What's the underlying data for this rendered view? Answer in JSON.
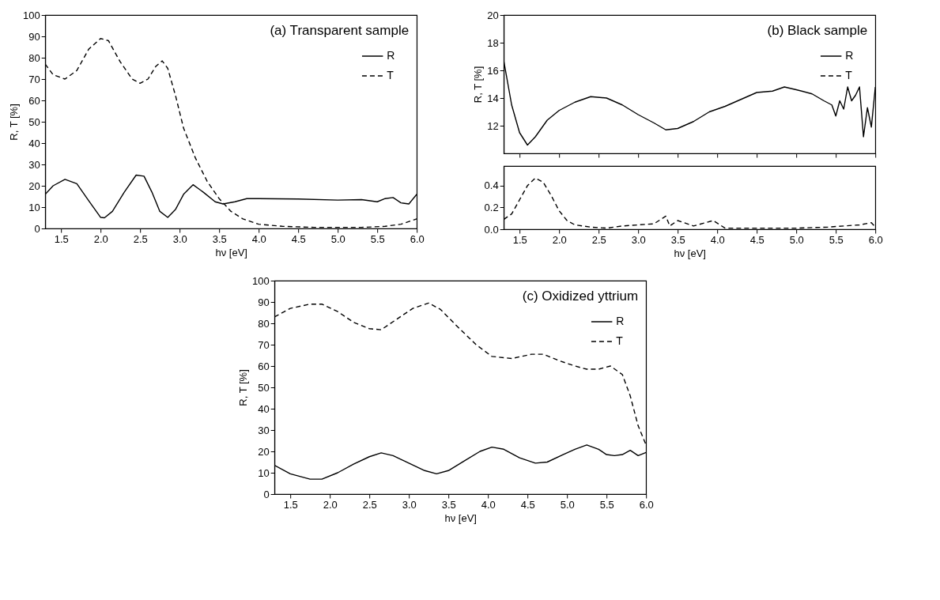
{
  "chart_data": [
    {
      "type": "line",
      "title": "(a) Transparent sample",
      "xlabel": "hν [eV]",
      "ylabel": "R, T [%]",
      "xlim": [
        1.3,
        6.0
      ],
      "xticks": [
        1.5,
        {
          "value": 2,
          "label": "2.0"
        },
        2.5,
        {
          "value": 3,
          "label": "3.0"
        },
        3.5,
        {
          "value": 4,
          "label": "4.0"
        },
        4.5,
        {
          "value": 5,
          "label": "5.0"
        },
        5.5,
        {
          "value": 6,
          "label": "6.0"
        }
      ],
      "ylim": [
        0,
        100
      ],
      "yticks": [
        0,
        10,
        20,
        30,
        40,
        50,
        60,
        70,
        80,
        90,
        100
      ],
      "grid": false,
      "legend": "top right",
      "series": [
        {
          "name": "R",
          "color": "#000000",
          "line_style": "solid",
          "x": [
            1.3,
            1.4,
            1.55,
            1.7,
            1.85,
            2.0,
            2.05,
            2.15,
            2.3,
            2.45,
            2.55,
            2.65,
            2.75,
            2.85,
            2.95,
            3.05,
            3.17,
            3.3,
            3.45,
            3.55,
            3.7,
            3.85,
            4.0,
            4.5,
            5.0,
            5.3,
            5.5,
            5.6,
            5.7,
            5.8,
            5.9,
            6.0
          ],
          "values": [
            16,
            20,
            23,
            21,
            13,
            5.2,
            5,
            8,
            17,
            25,
            24.5,
            17,
            8,
            5.2,
            9,
            16,
            20.5,
            17,
            12.5,
            11.5,
            12.5,
            14,
            14,
            13.8,
            13.3,
            13.5,
            12.5,
            14,
            14.5,
            12,
            11.5,
            16
          ]
        },
        {
          "name": "T",
          "color": "#000000",
          "line_style": "dashed",
          "x": [
            1.3,
            1.4,
            1.55,
            1.7,
            1.85,
            2.0,
            2.1,
            2.25,
            2.4,
            2.5,
            2.6,
            2.7,
            2.78,
            2.85,
            2.95,
            3.05,
            3.2,
            3.35,
            3.5,
            3.65,
            3.8,
            4.0,
            4.3,
            4.7,
            5.3,
            5.6,
            5.8,
            6.0
          ],
          "values": [
            77,
            72,
            70,
            74,
            84,
            89,
            88,
            78,
            70,
            68,
            70,
            76,
            78.5,
            75,
            62,
            47,
            33,
            22,
            14,
            8,
            4.5,
            2,
            1,
            0.5,
            0.5,
            1,
            2,
            4.5
          ]
        }
      ]
    },
    {
      "type": "line",
      "title": "(b) Black sample",
      "ylabel": "R, T [%]",
      "xlim": [
        1.3,
        6.0
      ],
      "xticks": [
        {
          "value": 1.5,
          "label": null
        },
        {
          "value": 2,
          "label": null
        },
        {
          "value": 2.5,
          "label": null
        },
        {
          "value": 3,
          "label": null
        },
        {
          "value": 3.5,
          "label": null
        },
        {
          "value": 4,
          "label": null
        },
        {
          "value": 4.5,
          "label": null
        },
        {
          "value": 5,
          "label": null
        },
        {
          "value": 5.5,
          "label": null
        },
        {
          "value": 6,
          "label": null
        }
      ],
      "ylim": [
        10,
        20
      ],
      "yticks": [
        12,
        14,
        16,
        18,
        20
      ],
      "tick_labels": "y",
      "grid": false,
      "legend": "top right",
      "series": [
        {
          "name": "R",
          "color": "#000000",
          "line_style": "solid",
          "x": [
            1.3,
            1.4,
            1.5,
            1.6,
            1.7,
            1.85,
            2.0,
            2.2,
            2.4,
            2.6,
            2.8,
            3.0,
            3.2,
            3.35,
            3.5,
            3.7,
            3.9,
            4.1,
            4.3,
            4.5,
            4.7,
            4.85,
            5.0,
            5.2,
            5.35,
            5.45,
            5.5,
            5.55,
            5.6,
            5.65,
            5.7,
            5.75,
            5.8,
            5.85,
            5.9,
            5.95,
            6.0
          ],
          "values": [
            16.7,
            13.5,
            11.5,
            10.6,
            11.2,
            12.4,
            13.1,
            13.7,
            14.1,
            14.0,
            13.5,
            12.8,
            12.2,
            11.7,
            11.8,
            12.3,
            13.0,
            13.4,
            13.9,
            14.4,
            14.5,
            14.8,
            14.6,
            14.3,
            13.8,
            13.5,
            12.7,
            13.8,
            13.2,
            14.8,
            13.8,
            14.2,
            14.8,
            11.2,
            13.3,
            11.9,
            14.8
          ]
        },
        {
          "name": "T",
          "color": "#000000",
          "line_style": "dashed"
        }
      ]
    },
    {
      "type": "line",
      "xlabel": "hν [eV]",
      "xlim": [
        1.3,
        6.0
      ],
      "xticks": [
        1.5,
        {
          "value": 2,
          "label": "2.0"
        },
        2.5,
        {
          "value": 3,
          "label": "3.0"
        },
        3.5,
        {
          "value": 4,
          "label": "4.0"
        },
        4.5,
        {
          "value": 5,
          "label": "5.0"
        },
        5.5,
        {
          "value": 6,
          "label": "6.0"
        }
      ],
      "ylim": [
        0,
        0.58
      ],
      "yticks": [
        {
          "value": 0,
          "label": "0.0"
        },
        0.2,
        0.4
      ],
      "grid": false,
      "series": [
        {
          "color": "#000000",
          "line_style": "dashed",
          "x": [
            1.3,
            1.4,
            1.5,
            1.6,
            1.7,
            1.8,
            1.9,
            2.0,
            2.1,
            2.2,
            2.4,
            2.6,
            2.8,
            3.0,
            3.2,
            3.35,
            3.4,
            3.5,
            3.7,
            3.95,
            4.1,
            4.5,
            5.0,
            5.4,
            5.8,
            5.95,
            6.0
          ],
          "values": [
            0.09,
            0.14,
            0.27,
            0.4,
            0.47,
            0.43,
            0.31,
            0.17,
            0.08,
            0.04,
            0.02,
            0.01,
            0.03,
            0.04,
            0.05,
            0.12,
            0.03,
            0.08,
            0.03,
            0.08,
            0.01,
            0.01,
            0.01,
            0.02,
            0.04,
            0.06,
            0.02
          ]
        }
      ]
    },
    {
      "type": "line",
      "title": "(c) Oxidized yttrium",
      "xlabel": "hν [eV]",
      "ylabel": "R, T [%]",
      "xlim": [
        1.3,
        6.0
      ],
      "xticks": [
        1.5,
        {
          "value": 2,
          "label": "2.0"
        },
        2.5,
        {
          "value": 3,
          "label": "3.0"
        },
        3.5,
        {
          "value": 4,
          "label": "4.0"
        },
        4.5,
        {
          "value": 5,
          "label": "5.0"
        },
        5.5,
        {
          "value": 6,
          "label": "6.0"
        }
      ],
      "ylim": [
        0,
        100
      ],
      "yticks": [
        0,
        10,
        20,
        30,
        40,
        50,
        60,
        70,
        80,
        90,
        100
      ],
      "grid": false,
      "legend": "top right",
      "series": [
        {
          "name": "R",
          "color": "#000000",
          "line_style": "solid",
          "x": [
            1.3,
            1.5,
            1.75,
            1.9,
            2.1,
            2.3,
            2.5,
            2.65,
            2.8,
            3.0,
            3.2,
            3.35,
            3.5,
            3.7,
            3.9,
            4.05,
            4.2,
            4.4,
            4.6,
            4.75,
            4.95,
            5.1,
            5.25,
            5.4,
            5.5,
            5.6,
            5.7,
            5.8,
            5.9,
            6.0
          ],
          "values": [
            13.5,
            9.5,
            7,
            7,
            10,
            14,
            17.5,
            19.3,
            18,
            14.5,
            11,
            9.5,
            11,
            15.5,
            20,
            22,
            21,
            17,
            14.5,
            15,
            18.5,
            21,
            23,
            21,
            18.5,
            18,
            18.5,
            20.5,
            18,
            19.5
          ]
        },
        {
          "name": "T",
          "color": "#000000",
          "line_style": "dashed",
          "x": [
            1.3,
            1.5,
            1.75,
            1.9,
            2.1,
            2.3,
            2.5,
            2.65,
            2.85,
            3.05,
            3.25,
            3.4,
            3.6,
            3.85,
            4.05,
            4.3,
            4.55,
            4.7,
            4.9,
            5.1,
            5.25,
            5.4,
            5.55,
            5.7,
            5.8,
            5.9,
            6.0
          ],
          "values": [
            83,
            87,
            89,
            89,
            85.5,
            80.5,
            77.5,
            77,
            82,
            87,
            89.5,
            86.5,
            79,
            70,
            64.5,
            63.5,
            65.5,
            65.5,
            62.5,
            60,
            58.5,
            58.5,
            60,
            56,
            46,
            32,
            23
          ]
        }
      ]
    }
  ]
}
